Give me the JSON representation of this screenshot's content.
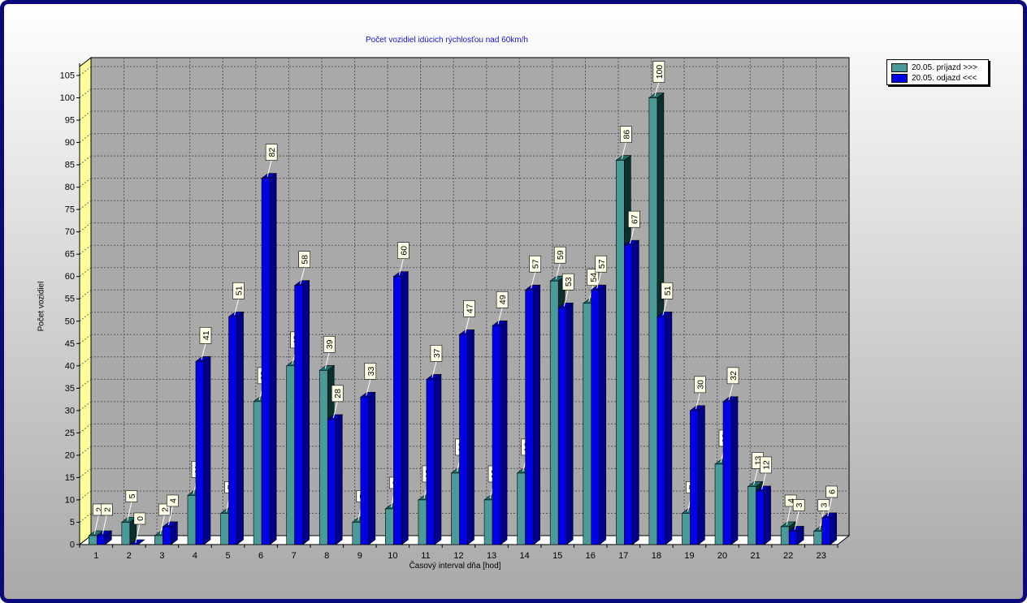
{
  "chart_data": {
    "type": "bar",
    "title": "Počet vozidiel idúcich rýchlosťou nad 60km/h",
    "xlabel": "Časový interval dňa [hod]",
    "ylabel": "Počet vozidiel",
    "categories": [
      "1",
      "2",
      "3",
      "4",
      "5",
      "6",
      "7",
      "8",
      "9",
      "10",
      "11",
      "12",
      "13",
      "14",
      "15",
      "16",
      "17",
      "18",
      "19",
      "20",
      "21",
      "22",
      "23"
    ],
    "yticks": [
      "0",
      "5",
      "10",
      "15",
      "20",
      "25",
      "30",
      "35",
      "40",
      "45",
      "50",
      "55",
      "60",
      "65",
      "70",
      "75",
      "80",
      "85",
      "90",
      "95",
      "100",
      "105"
    ],
    "ylim": [
      0,
      105
    ],
    "grid": true,
    "legend_position": "top-right",
    "series": [
      {
        "name": "20.05.  príjazd >>>",
        "color": "#4a9a98",
        "top_color": "#1e6d6a",
        "side_color": "#0a302e",
        "values": [
          2,
          5,
          2,
          11,
          7,
          32,
          40,
          39,
          5,
          8,
          10,
          16,
          10,
          16,
          59,
          54,
          86,
          100,
          7,
          18,
          13,
          4,
          3
        ],
        "labels": [
          "2",
          "5",
          "2",
          "11",
          "7",
          "32",
          "40",
          "39",
          "5",
          "8",
          "10",
          "16",
          "10",
          "16",
          "59",
          "54",
          "86",
          "100",
          "7",
          "18",
          "13",
          "4",
          "3"
        ]
      },
      {
        "name": "20.05.  odjazd <<<",
        "color": "#0000e8",
        "top_color": "#0000b8",
        "side_color": "#00008a",
        "values": [
          2,
          0,
          4,
          41,
          51,
          82,
          58,
          28,
          33,
          60,
          37,
          47,
          49,
          57,
          53,
          57,
          67,
          51,
          30,
          32,
          12,
          3,
          6
        ],
        "labels": [
          "2",
          "0",
          "4",
          "41",
          "51",
          "82",
          "58",
          "28",
          "33",
          "60",
          "37",
          "47",
          "49",
          "57",
          "53",
          "57",
          "67",
          "51",
          "30",
          "32",
          "12",
          "3",
          "6"
        ]
      }
    ]
  }
}
